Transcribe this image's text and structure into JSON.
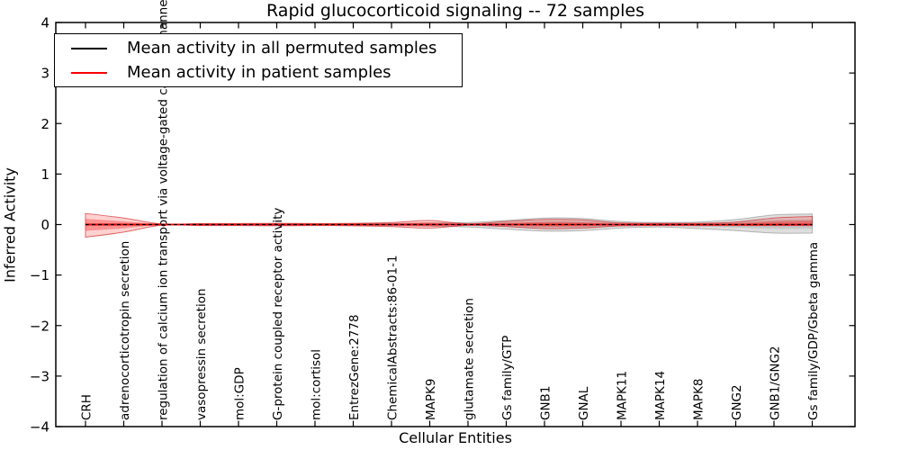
{
  "title": "Rapid glucocorticoid signaling -- 72 samples",
  "axes": {
    "x_label": "Cellular Entities",
    "y_label": "Inferred Activity",
    "y_ticks": [
      "4",
      "3",
      "2",
      "1",
      "0",
      "−1",
      "−2",
      "−3",
      "−4"
    ]
  },
  "legend": {
    "items": [
      {
        "label": "Mean activity in all permuted samples",
        "color": "#000000"
      },
      {
        "label": "Mean activity in patient samples",
        "color": "#ff0000"
      }
    ]
  },
  "chart_data": {
    "type": "area",
    "title": "Rapid glucocorticoid signaling -- 72 samples",
    "xlabel": "Cellular Entities",
    "ylabel": "Inferred Activity",
    "ylim": [
      -4,
      4
    ],
    "grid": false,
    "legend_position": "upper left",
    "categories": [
      "CRH",
      "adrenocorticotropin secretion",
      "regulation of calcium ion transport via voltage-gated calcium channels",
      "vasopressin secretion",
      "mol:GDP",
      "G-protein coupled receptor activity",
      "mol:cortisol",
      "EntrezGene:2778",
      "ChemicalAbstracts:86-01-1",
      "MAPK9",
      "glutamate secretion",
      "Gs family/GTP",
      "GNB1",
      "GNAL",
      "MAPK11",
      "MAPK14",
      "MAPK8",
      "GNG2",
      "GNB1/GNG2",
      "Gs family/GDP/Gbeta gamma"
    ],
    "series": [
      {
        "name": "Mean activity in all permuted samples",
        "color": "#000000",
        "line_style": "dashed",
        "mean": 0.0,
        "band_upper": [
          0.015,
          0.015,
          0.01,
          0.01,
          0.01,
          0.015,
          0.01,
          0.015,
          0.02,
          0.03,
          0.04,
          0.08,
          0.13,
          0.12,
          0.06,
          0.04,
          0.05,
          0.1,
          0.19,
          0.21
        ],
        "band_lower": [
          -0.015,
          -0.015,
          -0.01,
          -0.01,
          -0.01,
          -0.015,
          -0.01,
          -0.015,
          -0.02,
          -0.03,
          -0.05,
          -0.09,
          -0.13,
          -0.12,
          -0.07,
          -0.05,
          -0.08,
          -0.12,
          -0.17,
          -0.17
        ]
      },
      {
        "name": "Mean activity in patient samples",
        "color": "#ff0000",
        "line_style": "solid",
        "mean": 0.0,
        "band_upper": [
          0.22,
          0.13,
          0.01,
          0.02,
          0.02,
          0.025,
          0.02,
          0.025,
          0.04,
          0.08,
          0.015,
          0.06,
          0.1,
          0.09,
          0.03,
          0.025,
          0.025,
          0.05,
          0.13,
          0.16
        ],
        "band_lower": [
          -0.25,
          -0.15,
          -0.01,
          -0.02,
          -0.02,
          -0.025,
          -0.02,
          -0.025,
          -0.04,
          -0.07,
          -0.015,
          -0.04,
          -0.08,
          -0.07,
          -0.025,
          -0.02,
          -0.02,
          -0.02,
          -0.02,
          -0.02
        ]
      }
    ]
  }
}
